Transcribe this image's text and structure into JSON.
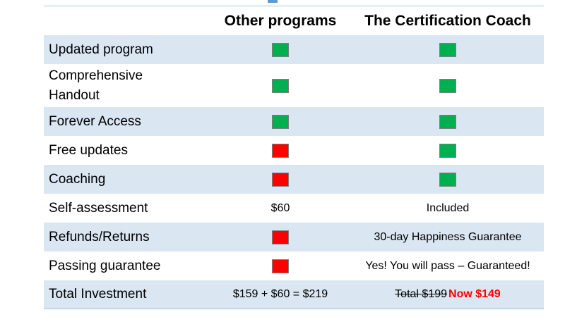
{
  "colors": {
    "check": "#00b050",
    "cross": "#ff0000",
    "shade": "#dae6f2",
    "rule": "#9dc3e6"
  },
  "header": {
    "col1": "",
    "col2": "Other programs",
    "col3": "The Certification Coach"
  },
  "rows": [
    {
      "label": "Updated program",
      "other": {
        "type": "check-icon"
      },
      "coach": {
        "type": "check-icon"
      }
    },
    {
      "label_line1": "Comprehensive",
      "label_line2": "Handout",
      "other": {
        "type": "check-icon"
      },
      "coach": {
        "type": "check-icon"
      }
    },
    {
      "label": "Forever Access",
      "other": {
        "type": "check-icon"
      },
      "coach": {
        "type": "check-icon"
      }
    },
    {
      "label": "Free updates",
      "other": {
        "type": "cross-icon"
      },
      "coach": {
        "type": "check-icon"
      }
    },
    {
      "label": "Coaching",
      "other": {
        "type": "cross-icon"
      },
      "coach": {
        "type": "check-icon"
      }
    },
    {
      "label": "Self-assessment",
      "other": {
        "text": "$60"
      },
      "coach": {
        "text": "Included"
      }
    },
    {
      "label": "Refunds/Returns",
      "other": {
        "type": "cross-icon"
      },
      "coach": {
        "text": "30-day Happiness Guarantee"
      }
    },
    {
      "label": "Passing guarantee",
      "other": {
        "type": "cross-icon"
      },
      "coach": {
        "text": "Yes! You will pass – Guaranteed!"
      }
    },
    {
      "label": "Total Investment",
      "other": {
        "text": "$159 + $60 = $219"
      },
      "coach": {
        "old_price": "Total $199 ",
        "new_price": "Now $149"
      }
    }
  ]
}
